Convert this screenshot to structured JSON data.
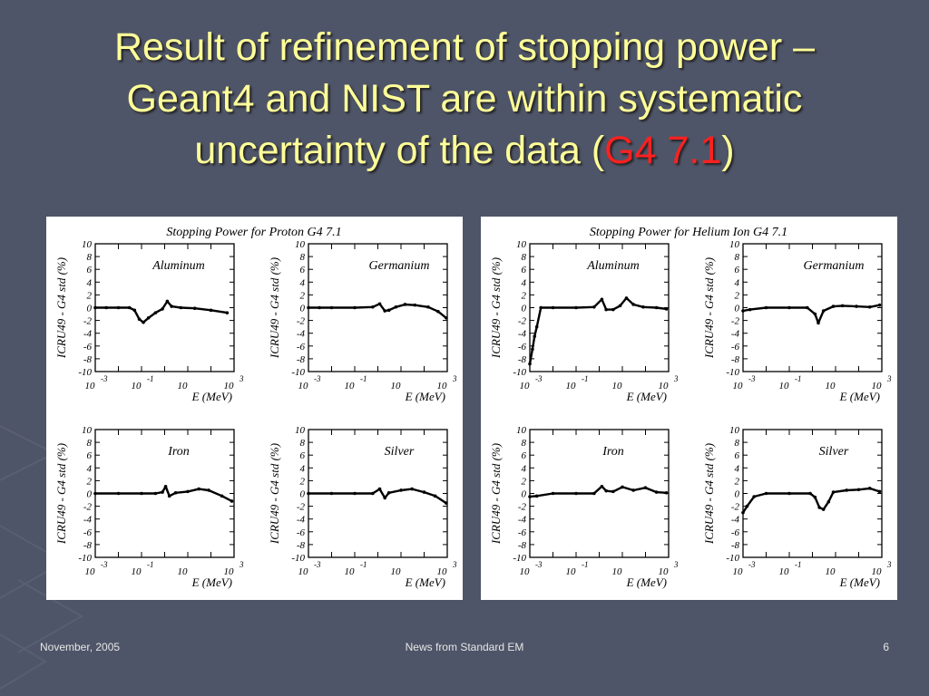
{
  "slide": {
    "title_line1": "Result of refinement of stopping power –",
    "title_line2": "Geant4 and NIST are within systematic",
    "title_line3a": "uncertainty of the data (",
    "title_highlight": "G4 7.1",
    "title_line3b": ")",
    "highlight_color": "#ff2020",
    "title_color": "#ffff99",
    "footer_left": "November, 2005",
    "footer_center": "News from Standard EM",
    "footer_right": "6"
  },
  "chart_data": [
    {
      "type": "scatter",
      "title": "Stopping Power for Proton G4 7.1",
      "ylabel": "ICRU49 - G4 std (%)",
      "xlabel": "E (MeV)",
      "xscale": "log",
      "xlim": [
        0.001,
        1000
      ],
      "ylim": [
        -10,
        10
      ],
      "yticks": [
        "10",
        "8",
        "6",
        "4",
        "2",
        "0",
        "-2",
        "-4",
        "-6",
        "-8",
        "-10"
      ],
      "xtick_mantissa": [
        "10",
        "10",
        "10",
        "10"
      ],
      "xtick_exponents": [
        "-3",
        "-1",
        "",
        "3"
      ],
      "subplots": [
        {
          "label": "Aluminum",
          "points": [
            [
              0.001,
              0
            ],
            [
              0.003,
              0
            ],
            [
              0.01,
              0
            ],
            [
              0.03,
              0
            ],
            [
              0.05,
              -0.4
            ],
            [
              0.08,
              -1.8
            ],
            [
              0.12,
              -2.3
            ],
            [
              0.2,
              -1.6
            ],
            [
              0.4,
              -0.8
            ],
            [
              0.8,
              -0.2
            ],
            [
              1.3,
              1.0
            ],
            [
              2,
              0.2
            ],
            [
              5,
              0
            ],
            [
              20,
              -0.1
            ],
            [
              100,
              -0.4
            ],
            [
              500,
              -0.8
            ]
          ]
        },
        {
          "label": "Germanium",
          "points": [
            [
              0.001,
              0
            ],
            [
              0.003,
              0
            ],
            [
              0.01,
              0
            ],
            [
              0.1,
              0
            ],
            [
              0.6,
              0.1
            ],
            [
              1.2,
              0.6
            ],
            [
              2,
              -0.5
            ],
            [
              3,
              -0.4
            ],
            [
              6,
              0.1
            ],
            [
              15,
              0.5
            ],
            [
              40,
              0.4
            ],
            [
              150,
              0.1
            ],
            [
              400,
              -0.6
            ],
            [
              900,
              -1.6
            ]
          ]
        },
        {
          "label": "Iron",
          "points": [
            [
              0.001,
              0
            ],
            [
              0.01,
              0
            ],
            [
              0.1,
              0
            ],
            [
              0.4,
              0
            ],
            [
              0.8,
              0.2
            ],
            [
              1.1,
              1.1
            ],
            [
              1.6,
              -0.4
            ],
            [
              3,
              0.1
            ],
            [
              10,
              0.3
            ],
            [
              30,
              0.7
            ],
            [
              80,
              0.5
            ],
            [
              300,
              -0.4
            ],
            [
              800,
              -1.2
            ]
          ]
        },
        {
          "label": "Silver",
          "points": [
            [
              0.001,
              0
            ],
            [
              0.01,
              0
            ],
            [
              0.1,
              0
            ],
            [
              0.6,
              0
            ],
            [
              1.2,
              0.7
            ],
            [
              2,
              -0.7
            ],
            [
              3,
              0.1
            ],
            [
              10,
              0.5
            ],
            [
              30,
              0.7
            ],
            [
              100,
              0.2
            ],
            [
              300,
              -0.4
            ],
            [
              900,
              -1.5
            ]
          ]
        }
      ]
    },
    {
      "type": "scatter",
      "title": "Stopping Power for Helium Ion G4 7.1",
      "ylabel": "ICRU49 - G4 std (%)",
      "xlabel": "E (MeV)",
      "xscale": "log",
      "xlim": [
        0.001,
        1000
      ],
      "ylim": [
        -10,
        10
      ],
      "yticks": [
        "10",
        "8",
        "6",
        "4",
        "2",
        "0",
        "-2",
        "-4",
        "-6",
        "-8",
        "-10"
      ],
      "xtick_mantissa": [
        "10",
        "10",
        "10",
        "10"
      ],
      "xtick_exponents": [
        "-3",
        "-1",
        "",
        "3"
      ],
      "subplots": [
        {
          "label": "Aluminum",
          "points": [
            [
              0.001,
              -8.8
            ],
            [
              0.0013,
              -6.5
            ],
            [
              0.0016,
              -4.5
            ],
            [
              0.002,
              -3
            ],
            [
              0.003,
              0
            ],
            [
              0.01,
              0
            ],
            [
              0.1,
              0
            ],
            [
              0.6,
              0.1
            ],
            [
              1.3,
              1.3
            ],
            [
              2,
              -0.3
            ],
            [
              4,
              -0.3
            ],
            [
              8,
              0.3
            ],
            [
              15,
              1.5
            ],
            [
              30,
              0.5
            ],
            [
              80,
              0.1
            ],
            [
              300,
              0
            ],
            [
              800,
              -0.2
            ]
          ]
        },
        {
          "label": "Germanium",
          "points": [
            [
              0.001,
              -0.5
            ],
            [
              0.002,
              -0.3
            ],
            [
              0.01,
              0
            ],
            [
              0.1,
              0
            ],
            [
              0.6,
              0
            ],
            [
              1.3,
              -1
            ],
            [
              1.8,
              -2.4
            ],
            [
              3,
              -0.5
            ],
            [
              8,
              0.2
            ],
            [
              20,
              0.3
            ],
            [
              80,
              0.2
            ],
            [
              300,
              0.1
            ],
            [
              800,
              0.4
            ]
          ]
        },
        {
          "label": "Iron",
          "points": [
            [
              0.001,
              -0.5
            ],
            [
              0.002,
              -0.4
            ],
            [
              0.01,
              0
            ],
            [
              0.1,
              0
            ],
            [
              0.6,
              0
            ],
            [
              1.3,
              1.1
            ],
            [
              2,
              0.4
            ],
            [
              4,
              0.3
            ],
            [
              10,
              1.0
            ],
            [
              30,
              0.5
            ],
            [
              100,
              0.9
            ],
            [
              300,
              0.2
            ],
            [
              800,
              0.1
            ]
          ]
        },
        {
          "label": "Silver",
          "points": [
            [
              0.001,
              -3
            ],
            [
              0.0015,
              -2
            ],
            [
              0.003,
              -0.5
            ],
            [
              0.01,
              0
            ],
            [
              0.1,
              0
            ],
            [
              0.8,
              0
            ],
            [
              1.3,
              -0.6
            ],
            [
              2,
              -2.2
            ],
            [
              3,
              -2.5
            ],
            [
              5,
              -1.3
            ],
            [
              8,
              0.2
            ],
            [
              30,
              0.5
            ],
            [
              100,
              0.6
            ],
            [
              300,
              0.8
            ],
            [
              800,
              0.3
            ]
          ]
        }
      ]
    }
  ]
}
